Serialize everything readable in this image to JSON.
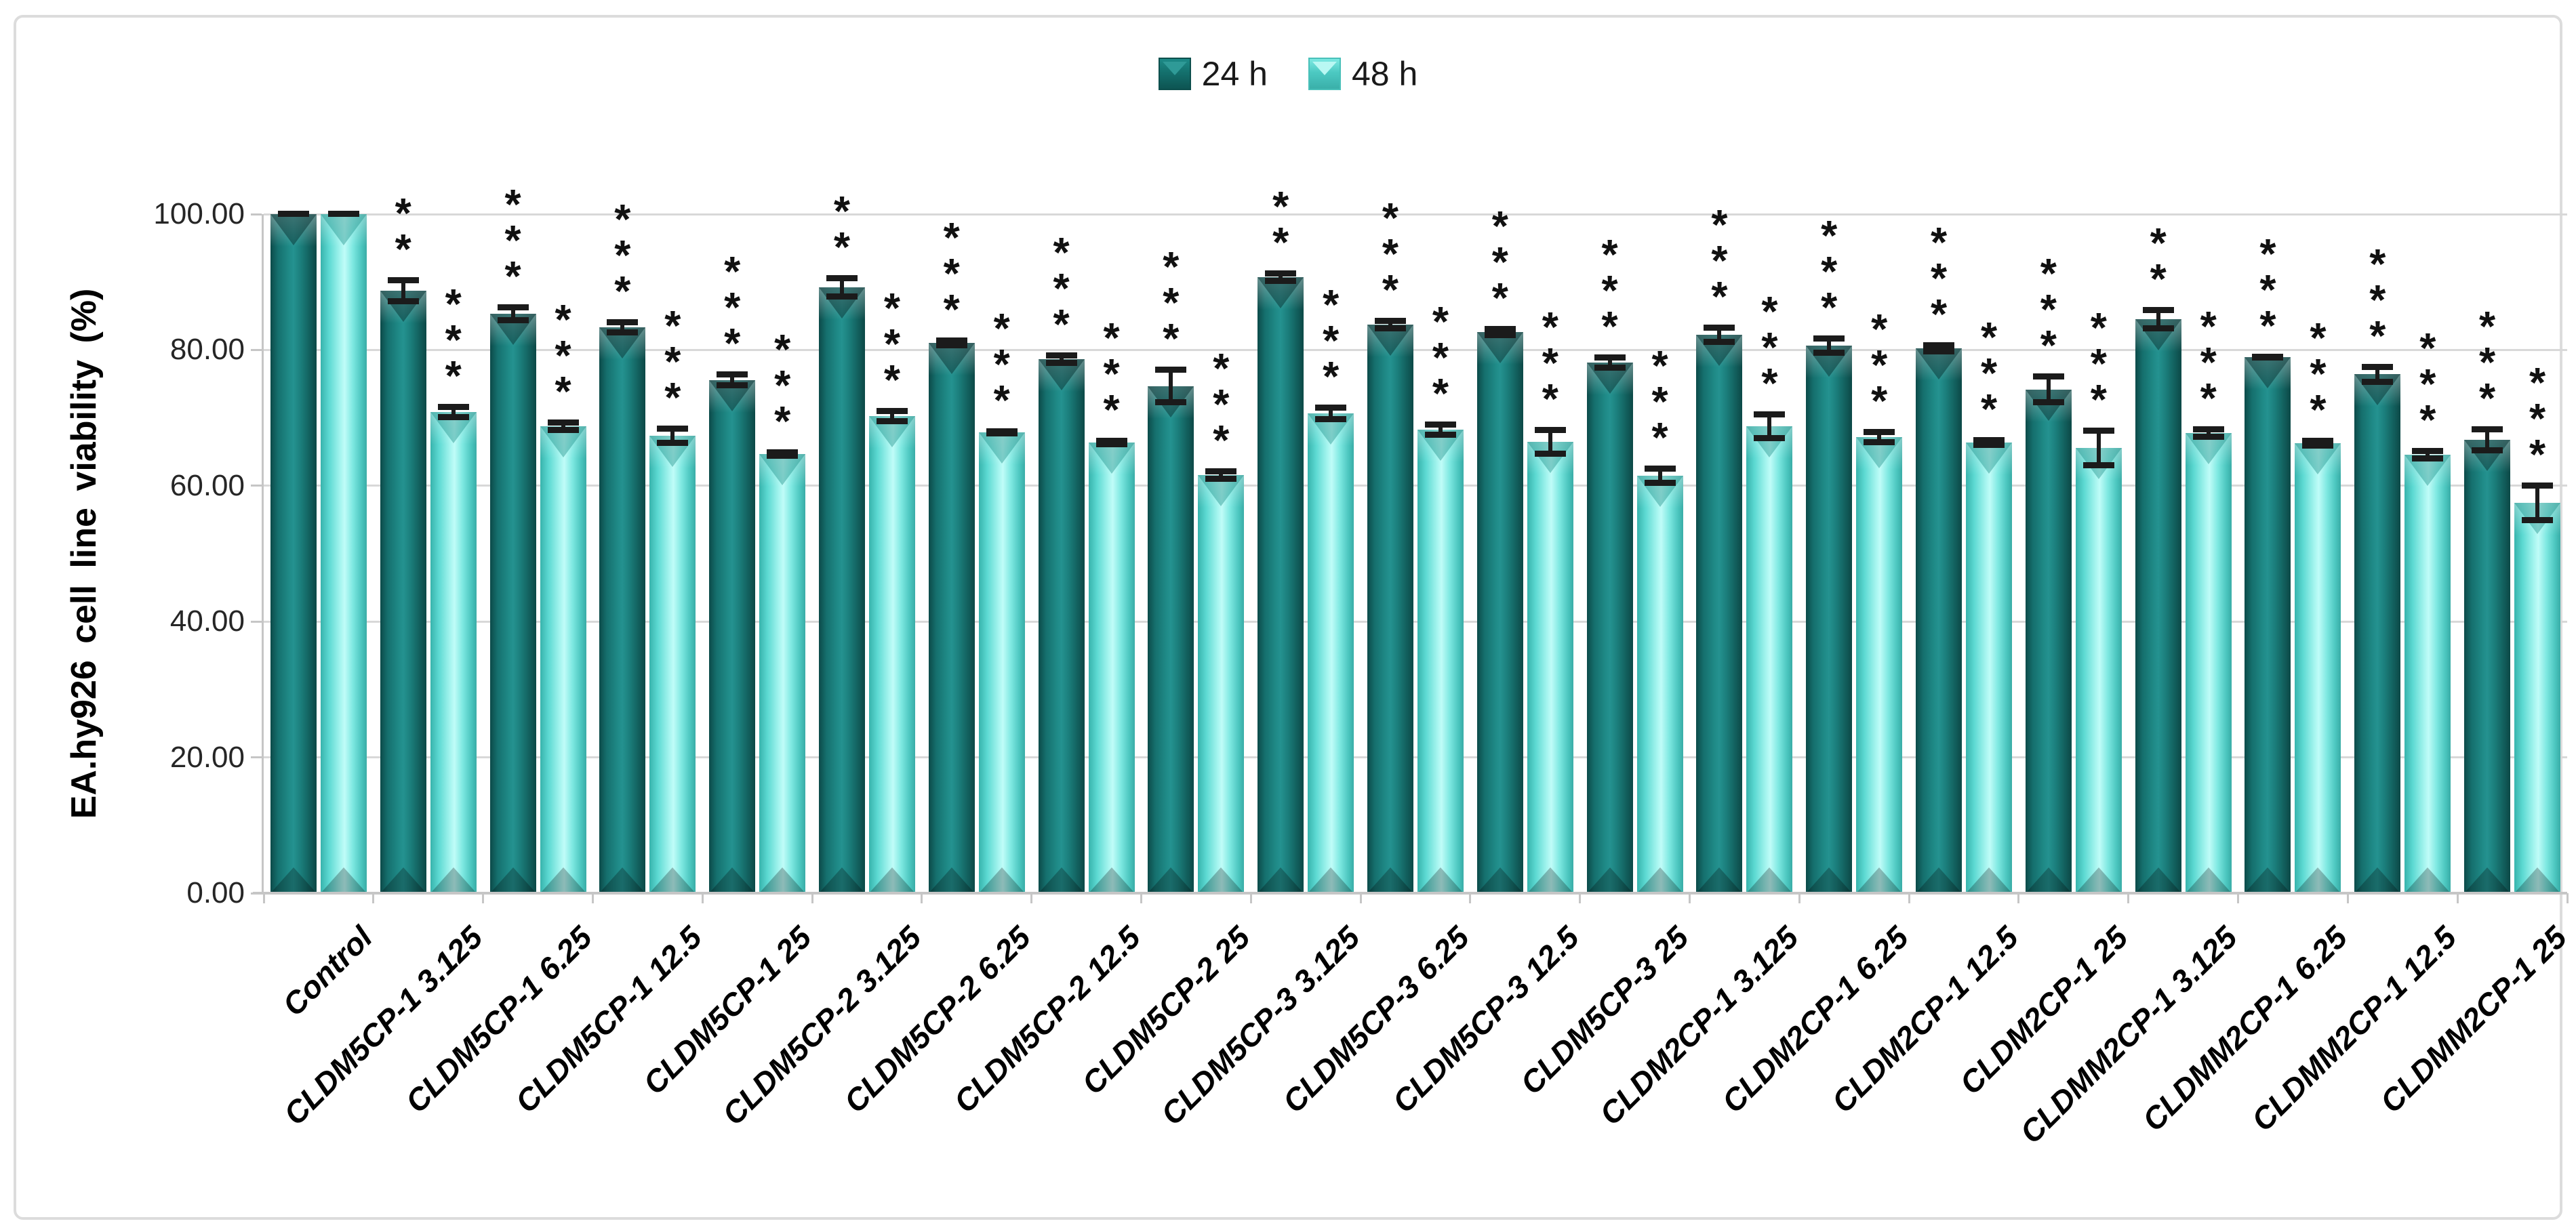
{
  "chart_data": {
    "type": "bar",
    "ylabel": "EA.hy926 cell line viability (%)",
    "ylim": [
      0,
      100
    ],
    "ytick_labels": [
      "0.00",
      "20.00",
      "40.00",
      "60.00",
      "80.00",
      "100.00"
    ],
    "grid": true,
    "legend_position": "top-center",
    "categories": [
      "Control",
      "CLDM5CP-1 3.125",
      "CLDM5CP-1 6.25",
      "CLDM5CP-1 12.5",
      "CLDM5CP-1 25",
      "CLDM5CP-2 3.125",
      "CLDM5CP-2 6.25",
      "CLDM5CP-2 12.5",
      "CLDM5CP-2 25",
      "CLDM5CP-3 3.125",
      "CLDM5CP-3 6.25",
      "CLDM5CP-3 12.5",
      "CLDM5CP-3 25",
      "CLDM2CP-1 3.125",
      "CLDM2CP-1 6.25",
      "CLDM2CP-1 12.5",
      "CLDM2CP-1 25",
      "CLDMM2CP-1 3.125",
      "CLDMM2CP-1 6.25",
      "CLDMM2CP-1 12.5",
      "CLDMM2CP-1 25"
    ],
    "series": [
      {
        "name": "24 h",
        "color": "#1f8a87",
        "values": [
          100.0,
          88.7,
          85.3,
          83.3,
          75.6,
          89.2,
          81.0,
          78.6,
          74.7,
          90.7,
          83.7,
          82.6,
          78.1,
          82.2,
          80.6,
          80.2,
          74.2,
          84.5,
          78.9,
          76.4,
          66.8
        ],
        "errors": [
          0.4,
          2.0,
          1.4,
          1.2,
          1.2,
          1.8,
          0.8,
          1.0,
          2.8,
          1.0,
          1.0,
          0.9,
          1.2,
          1.5,
          1.5,
          0.9,
          2.3,
          1.8,
          0.5,
          1.5,
          2.0
        ],
        "sig": [
          "",
          "**",
          "***",
          "***",
          "***",
          "**",
          "***",
          "***",
          "***",
          "**",
          "***",
          "***",
          "***",
          "***",
          "***",
          "***",
          "***",
          "**",
          "***",
          "***",
          "***"
        ]
      },
      {
        "name": "48 h",
        "color": "#5cd9d2",
        "values": [
          100.0,
          70.9,
          68.8,
          67.4,
          64.7,
          70.3,
          67.9,
          66.4,
          61.6,
          70.7,
          68.3,
          66.5,
          61.5,
          68.8,
          67.2,
          66.4,
          65.6,
          67.8,
          66.3,
          64.6,
          57.5
        ],
        "errors": [
          0.4,
          1.2,
          1.0,
          1.5,
          0.7,
          1.2,
          0.6,
          0.7,
          1.0,
          1.3,
          1.2,
          2.2,
          1.5,
          2.2,
          1.2,
          0.8,
          3.0,
          1.0,
          0.8,
          1.0,
          3.0
        ],
        "sig": [
          "",
          "***",
          "***",
          "***",
          "***",
          "***",
          "***",
          "***",
          "***",
          "***",
          "***",
          "***",
          "***",
          "***",
          "***",
          "***",
          "***",
          "***",
          "***",
          "***",
          "***"
        ]
      }
    ],
    "error_bar_color": "#1b1b1b",
    "gridline_color": "#d8d8d8",
    "axis_color": "#c6c6c6"
  }
}
